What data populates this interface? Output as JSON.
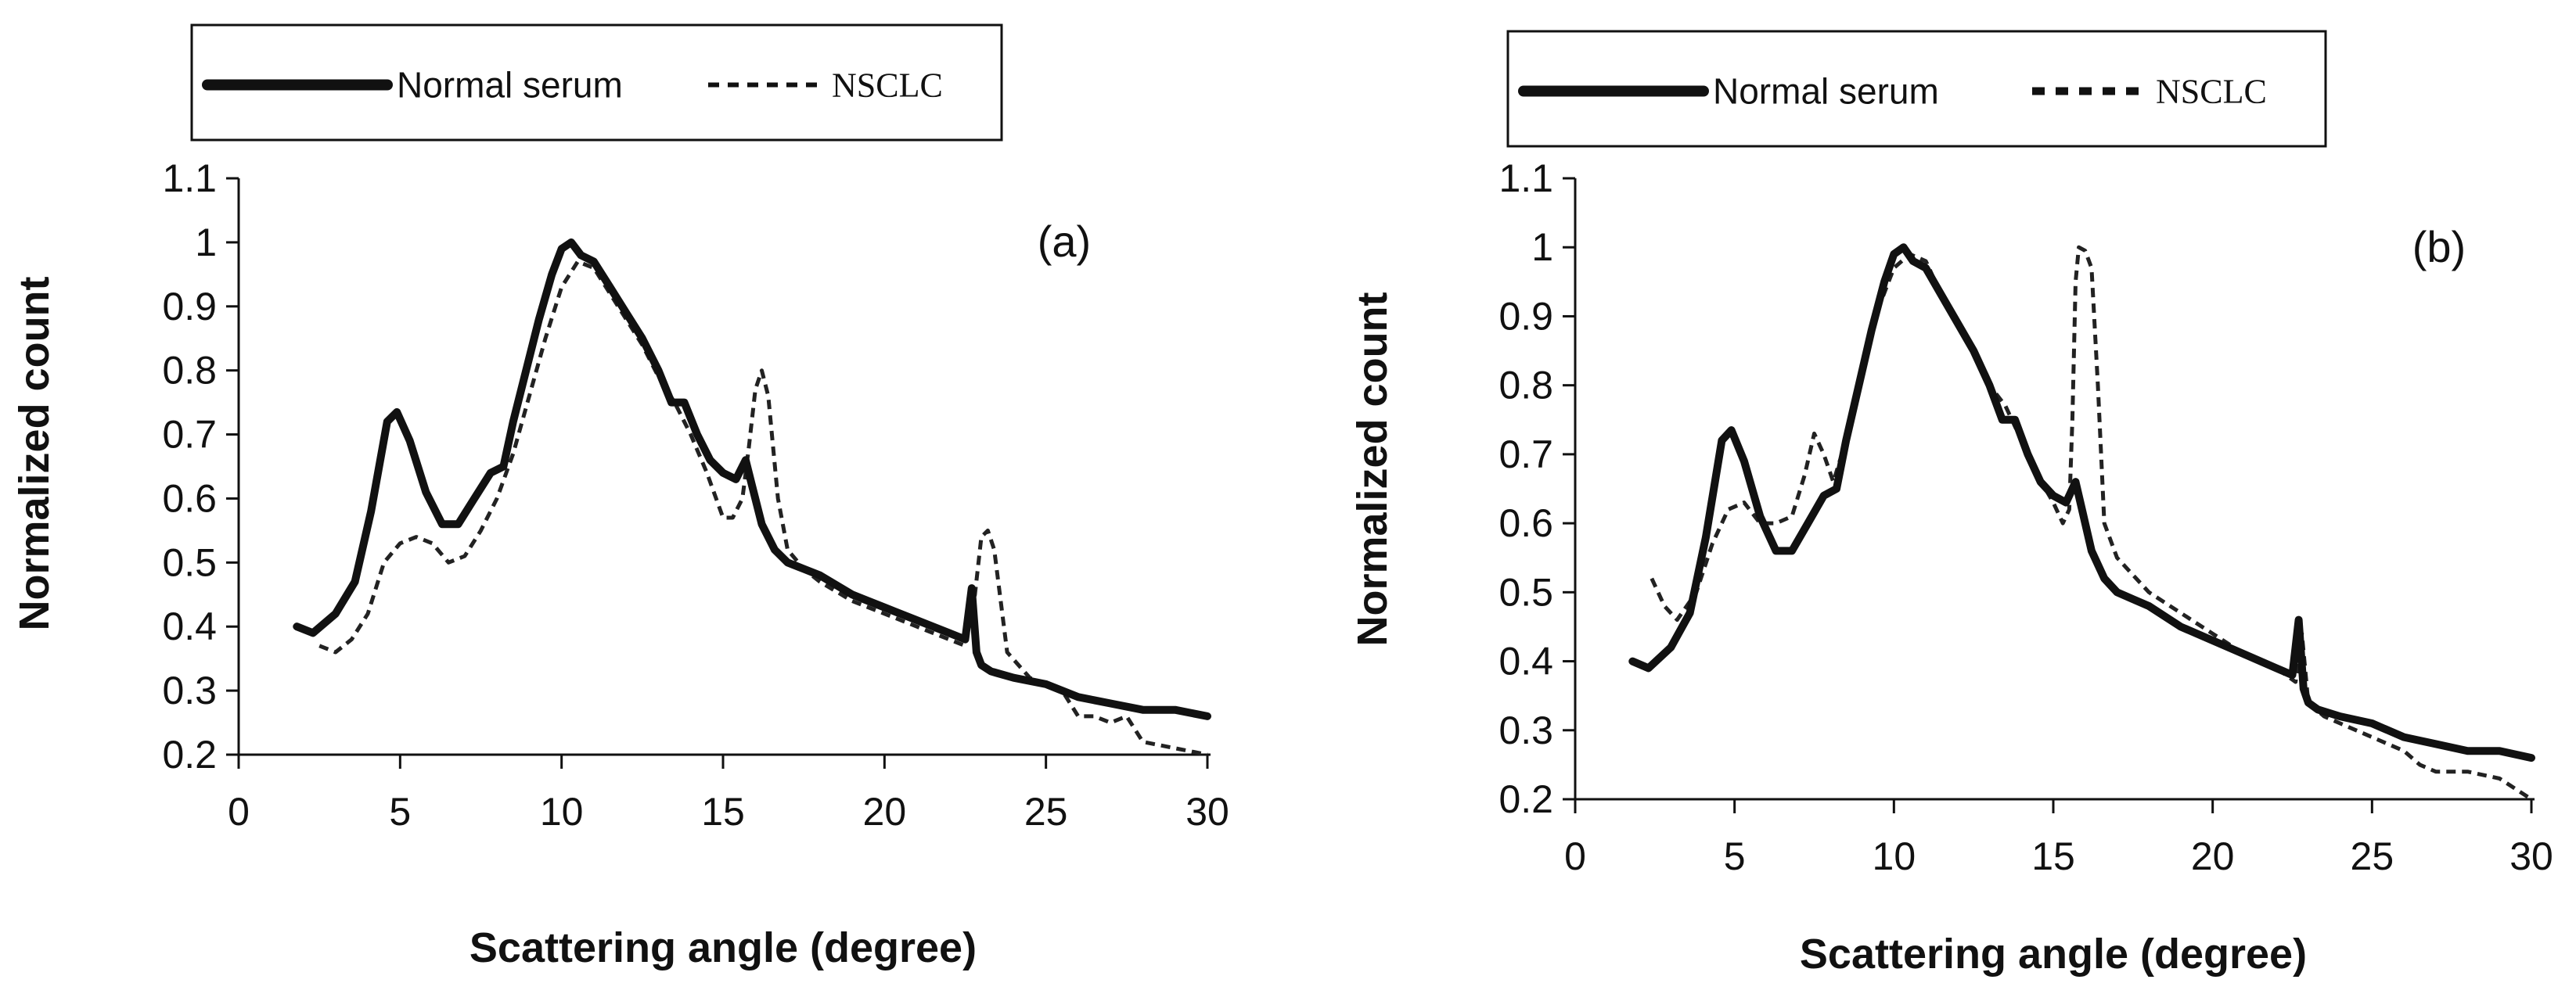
{
  "chart_data": [
    {
      "type": "line",
      "panel_label": "(a)",
      "xlabel": "Scattering angle (degree)",
      "ylabel": "Normalized count",
      "xlim": [
        0,
        30
      ],
      "ylim": [
        0.2,
        1.1
      ],
      "xticks": [
        "0",
        "5",
        "10",
        "15",
        "20",
        "25",
        "30"
      ],
      "yticks": [
        "0.2",
        "0.3",
        "0.4",
        "0.5",
        "0.6",
        "0.7",
        "0.8",
        "0.9",
        "1",
        "1.1"
      ],
      "legend": [
        "Normal serum",
        "NSCLC"
      ],
      "series": [
        {
          "name": "Normal serum",
          "style": "solid",
          "x": [
            1.8,
            2.3,
            3,
            3.6,
            4.1,
            4.6,
            4.9,
            5.3,
            5.8,
            6.3,
            6.8,
            7.3,
            7.8,
            8.2,
            8.5,
            8.9,
            9.3,
            9.7,
            10.0,
            10.3,
            10.6,
            11.0,
            11.5,
            12.0,
            12.5,
            13.0,
            13.4,
            13.8,
            14.2,
            14.6,
            15.0,
            15.4,
            15.7,
            15.9,
            16.2,
            16.6,
            17.0,
            17.5,
            18,
            19,
            20,
            21,
            22,
            22.5,
            22.7,
            22.85,
            23.0,
            23.3,
            24,
            25,
            26,
            27,
            28,
            29,
            30
          ],
          "values": [
            0.4,
            0.39,
            0.42,
            0.47,
            0.58,
            0.72,
            0.735,
            0.69,
            0.61,
            0.56,
            0.56,
            0.6,
            0.64,
            0.65,
            0.72,
            0.8,
            0.88,
            0.95,
            0.99,
            1.0,
            0.98,
            0.97,
            0.93,
            0.89,
            0.85,
            0.8,
            0.75,
            0.75,
            0.7,
            0.66,
            0.64,
            0.63,
            0.66,
            0.62,
            0.56,
            0.52,
            0.5,
            0.49,
            0.48,
            0.45,
            0.43,
            0.41,
            0.39,
            0.38,
            0.46,
            0.36,
            0.34,
            0.33,
            0.32,
            0.31,
            0.29,
            0.28,
            0.27,
            0.27,
            0.26
          ]
        },
        {
          "name": "NSCLC",
          "style": "dashed",
          "x": [
            2.5,
            3,
            3.5,
            4,
            4.5,
            5,
            5.5,
            6,
            6.5,
            7,
            7.5,
            8,
            8.5,
            9,
            9.5,
            10,
            10.5,
            11,
            11.5,
            12,
            12.5,
            13,
            13.5,
            14,
            14.5,
            15,
            15.3,
            15.6,
            15.8,
            16.0,
            16.2,
            16.4,
            16.7,
            17,
            17.5,
            18,
            19,
            20,
            21,
            22,
            22.5,
            22.8,
            23.0,
            23.2,
            23.4,
            23.8,
            24.5,
            25,
            25.5,
            26,
            26.5,
            27,
            27.5,
            28,
            29,
            30
          ],
          "values": [
            0.37,
            0.36,
            0.38,
            0.42,
            0.5,
            0.53,
            0.54,
            0.53,
            0.5,
            0.51,
            0.55,
            0.6,
            0.67,
            0.76,
            0.85,
            0.93,
            0.97,
            0.96,
            0.92,
            0.88,
            0.84,
            0.79,
            0.75,
            0.7,
            0.64,
            0.57,
            0.57,
            0.6,
            0.68,
            0.77,
            0.8,
            0.76,
            0.6,
            0.52,
            0.49,
            0.47,
            0.44,
            0.42,
            0.4,
            0.38,
            0.37,
            0.45,
            0.54,
            0.55,
            0.52,
            0.36,
            0.32,
            0.31,
            0.3,
            0.26,
            0.26,
            0.25,
            0.26,
            0.22,
            0.21,
            0.2
          ]
        }
      ]
    },
    {
      "type": "line",
      "panel_label": "(b)",
      "xlabel": "Scattering angle (degree)",
      "ylabel": "Normalized count",
      "xlim": [
        0,
        30
      ],
      "ylim": [
        0.2,
        1.1
      ],
      "xticks": [
        "0",
        "5",
        "10",
        "15",
        "20",
        "25",
        "30"
      ],
      "yticks": [
        "0.2",
        "0.3",
        "0.4",
        "0.5",
        "0.6",
        "0.7",
        "0.8",
        "0.9",
        "1",
        "1.1"
      ],
      "legend": [
        "Normal serum",
        "NSCLC"
      ],
      "series": [
        {
          "name": "Normal serum",
          "style": "solid",
          "x": [
            1.8,
            2.3,
            3,
            3.6,
            4.1,
            4.6,
            4.9,
            5.3,
            5.8,
            6.3,
            6.8,
            7.3,
            7.8,
            8.2,
            8.5,
            8.9,
            9.3,
            9.7,
            10.0,
            10.3,
            10.6,
            11.0,
            11.5,
            12.0,
            12.5,
            13.0,
            13.4,
            13.8,
            14.2,
            14.6,
            15.0,
            15.4,
            15.7,
            15.9,
            16.2,
            16.6,
            17.0,
            17.5,
            18,
            19,
            20,
            21,
            22,
            22.5,
            22.7,
            22.85,
            23.0,
            23.3,
            24,
            25,
            26,
            27,
            28,
            29,
            30
          ],
          "values": [
            0.4,
            0.39,
            0.42,
            0.47,
            0.58,
            0.72,
            0.735,
            0.69,
            0.61,
            0.56,
            0.56,
            0.6,
            0.64,
            0.65,
            0.72,
            0.8,
            0.88,
            0.95,
            0.99,
            1.0,
            0.98,
            0.97,
            0.93,
            0.89,
            0.85,
            0.8,
            0.75,
            0.75,
            0.7,
            0.66,
            0.64,
            0.63,
            0.66,
            0.62,
            0.56,
            0.52,
            0.5,
            0.49,
            0.48,
            0.45,
            0.43,
            0.41,
            0.39,
            0.38,
            0.46,
            0.36,
            0.34,
            0.33,
            0.32,
            0.31,
            0.29,
            0.28,
            0.27,
            0.27,
            0.26
          ]
        },
        {
          "name": "NSCLC",
          "style": "dashed",
          "x": [
            2.4,
            2.8,
            3.2,
            3.8,
            4.3,
            4.8,
            5.3,
            5.8,
            6.3,
            6.8,
            7.2,
            7.5,
            7.8,
            8.1,
            8.5,
            9,
            9.5,
            10,
            10.5,
            11,
            11.5,
            12,
            12.5,
            13,
            13.5,
            14,
            14.5,
            15,
            15.3,
            15.5,
            15.6,
            15.7,
            15.8,
            16.0,
            16.2,
            16.4,
            16.6,
            17,
            18,
            19,
            20,
            21,
            22,
            22.6,
            22.8,
            23,
            23.5,
            24,
            25,
            26,
            26.5,
            27,
            28,
            29,
            30
          ],
          "values": [
            0.52,
            0.48,
            0.46,
            0.5,
            0.57,
            0.62,
            0.63,
            0.6,
            0.6,
            0.61,
            0.67,
            0.73,
            0.7,
            0.66,
            0.72,
            0.82,
            0.91,
            0.97,
            0.99,
            0.98,
            0.93,
            0.89,
            0.85,
            0.8,
            0.77,
            0.72,
            0.67,
            0.63,
            0.6,
            0.62,
            0.75,
            0.95,
            1.0,
            0.995,
            0.97,
            0.8,
            0.6,
            0.55,
            0.5,
            0.47,
            0.44,
            0.41,
            0.39,
            0.37,
            0.44,
            0.34,
            0.32,
            0.31,
            0.29,
            0.27,
            0.25,
            0.24,
            0.24,
            0.23,
            0.2
          ]
        }
      ]
    }
  ]
}
